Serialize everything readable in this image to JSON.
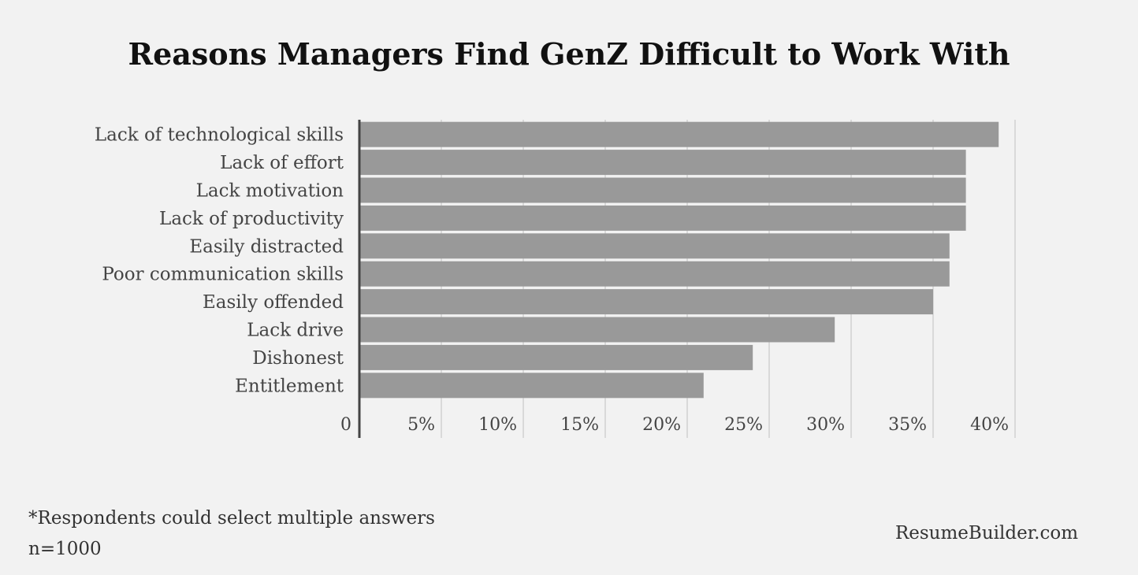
{
  "chart_data": {
    "type": "bar",
    "orientation": "horizontal",
    "title": "Reasons Managers Find GenZ Difficult to Work With",
    "xlabel": "",
    "ylabel": "",
    "categories": [
      "Lack of technological skills",
      "Lack of effort",
      "Lack motivation",
      "Lack of productivity",
      "Easily distracted",
      "Poor communication skills",
      "Easily offended",
      "Lack drive",
      "Dishonest",
      "Entitlement"
    ],
    "values": [
      39,
      37,
      37,
      37,
      36,
      36,
      35,
      29,
      24,
      21
    ],
    "xlim": [
      0,
      40
    ],
    "x_ticks": [
      0,
      5,
      10,
      15,
      20,
      25,
      30,
      35,
      40
    ],
    "x_tick_labels": [
      "0",
      "5%",
      "10%",
      "15%",
      "20%",
      "25%",
      "30%",
      "35%",
      "40%"
    ],
    "unit": "%",
    "grid": true,
    "legend": "none",
    "bar_color": "#999999",
    "gridline_color": "#d9d9d9",
    "axis_color": "#444444"
  },
  "notes": {
    "footnote": "*Respondents could select multiple answers",
    "sample_size": "n=1000",
    "source": "ResumeBuilder.com"
  },
  "colors": {
    "background": "#f2f2f2",
    "title_text": "#111111",
    "label_text": "#444444"
  }
}
